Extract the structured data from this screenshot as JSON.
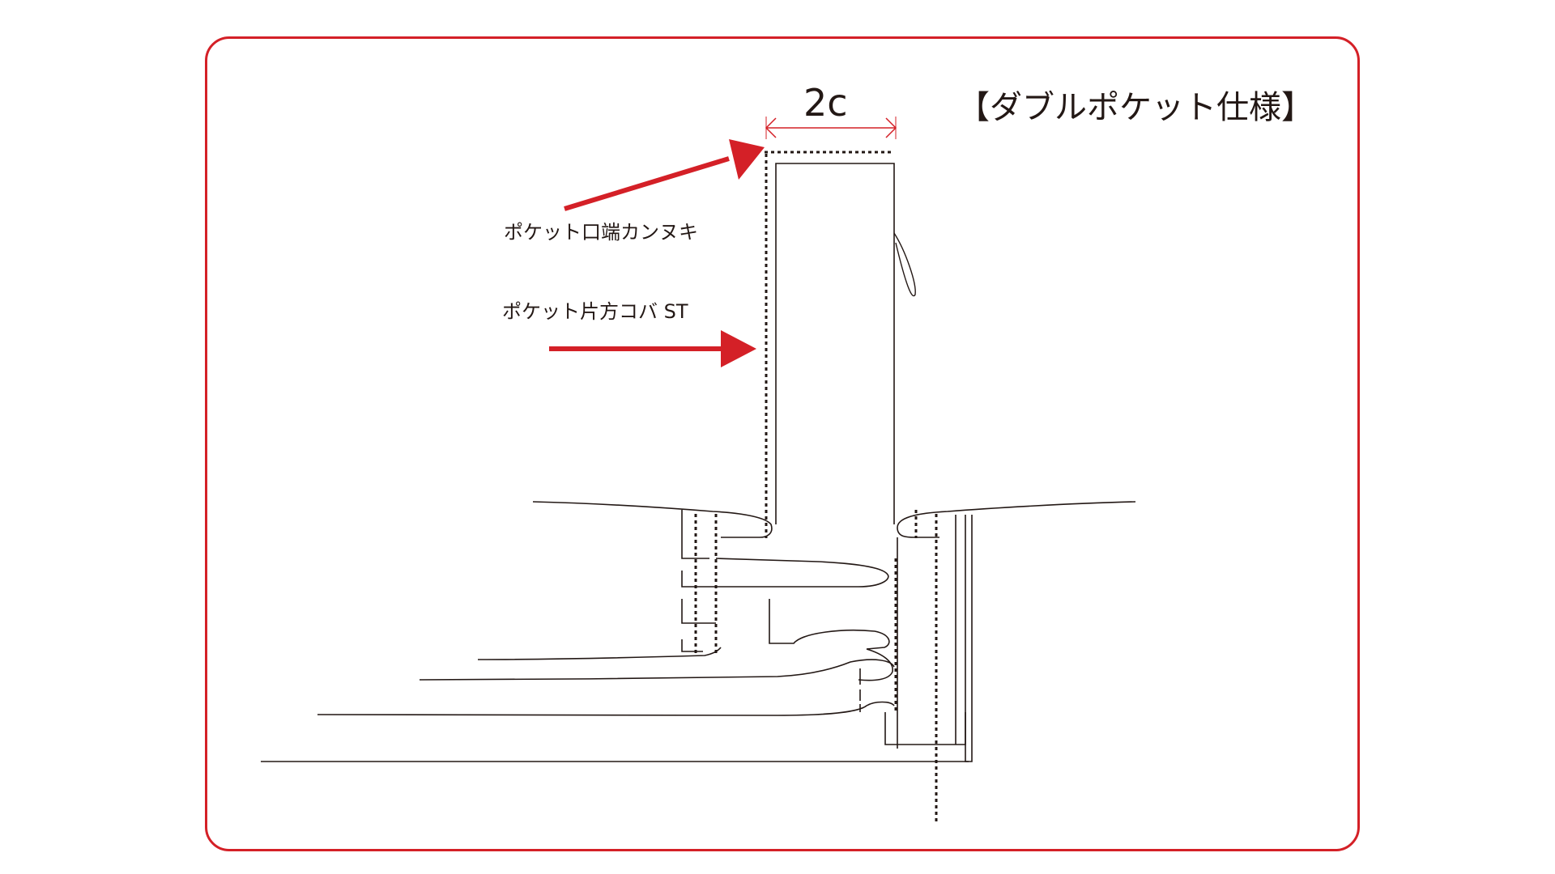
{
  "title": "【ダブルポケット仕様】",
  "dimension_label": "2c",
  "annotations": {
    "bartack_label": "ポケット口端カンヌキ",
    "topstitch_label": "ポケット片方コバ ST"
  },
  "colors": {
    "accent": "#d42027",
    "ink": "#231815",
    "dimension_line": "#d42027"
  }
}
